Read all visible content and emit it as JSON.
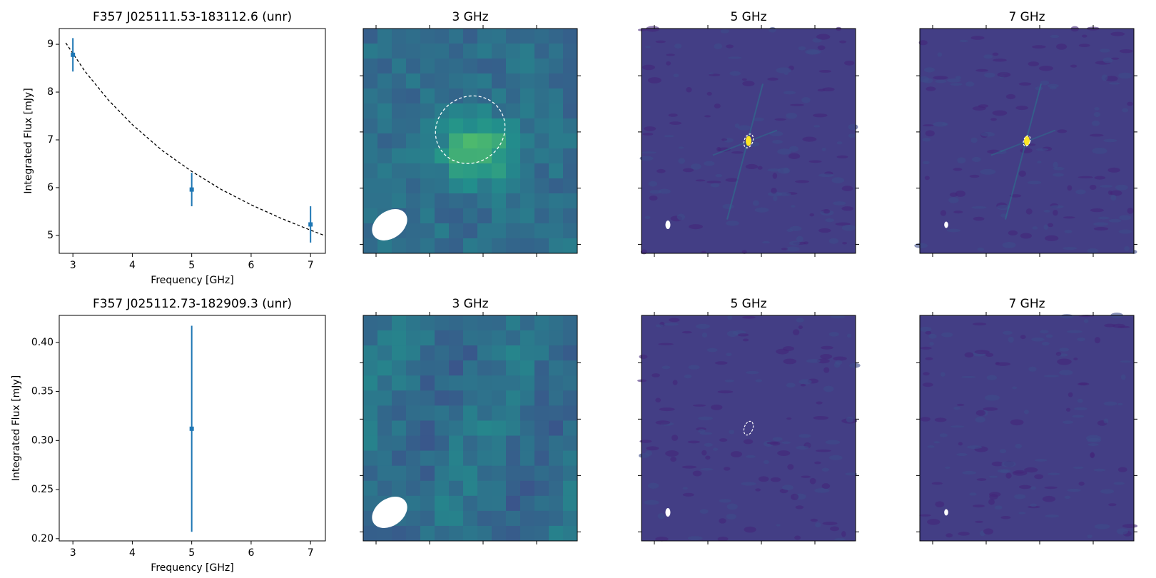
{
  "chart_data": [
    {
      "type": "errorbar",
      "title": "F357 J025111.53-183112.6 (unr)",
      "xlabel": "Frequency [GHz]",
      "ylabel": "Integrated Flux [mJy]",
      "x": [
        3,
        5,
        7
      ],
      "values": [
        8.78,
        5.96,
        5.23
      ],
      "errors": [
        0.35,
        0.35,
        0.38
      ],
      "color": "#1f77b4",
      "fit": {
        "x": [
          2.88,
          3.2,
          3.6,
          4,
          4.5,
          5,
          5.5,
          6,
          6.5,
          7,
          7.25
        ],
        "values": [
          9.03,
          8.44,
          7.83,
          7.32,
          6.78,
          6.34,
          5.96,
          5.64,
          5.36,
          5.11,
          4.99
        ],
        "color": "#000000"
      },
      "xlim": [
        2.77,
        7.25
      ],
      "ylim": [
        4.625,
        9.33
      ],
      "xticks": [
        3,
        4,
        5,
        6,
        7
      ],
      "yticks": [
        5,
        6,
        7,
        8,
        9
      ]
    },
    {
      "type": "image",
      "title": "3 GHz"
    },
    {
      "type": "image",
      "title": "5 GHz"
    },
    {
      "type": "image",
      "title": "7 GHz"
    },
    {
      "type": "errorbar",
      "title": "F357 J025112.73-182909.3 (unr)",
      "xlabel": "Frequency [GHz]",
      "ylabel": "Integrated Flux [mJy]",
      "x": [
        5
      ],
      "values": [
        0.312
      ],
      "errors": [
        0.105
      ],
      "color": "#1f77b4",
      "xlim": [
        2.77,
        7.25
      ],
      "ylim": [
        0.1977,
        0.4275
      ],
      "xticks": [
        3,
        4,
        5,
        6,
        7
      ],
      "yticks": [
        {
          "value": 0.2,
          "label": "0.20"
        },
        0.25,
        {
          "value": 0.3,
          "label": "0.30"
        },
        0.35,
        {
          "value": 0.4,
          "label": "0.40"
        }
      ]
    },
    {
      "type": "image",
      "title": "3 GHz"
    },
    {
      "type": "image",
      "title": "5 GHz"
    },
    {
      "type": "image",
      "title": "7 GHz"
    }
  ]
}
